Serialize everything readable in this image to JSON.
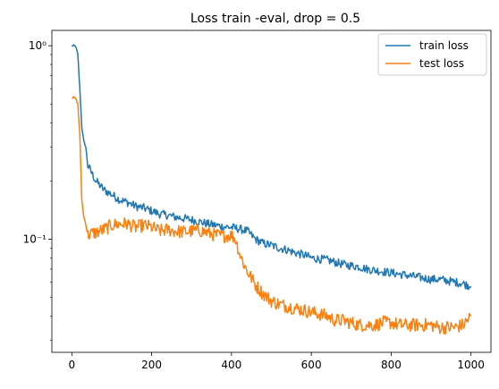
{
  "chart_data": {
    "type": "line",
    "title": "Loss train -eval, drop = 0.5",
    "xlabel": "",
    "ylabel": "",
    "yscale": "log",
    "xlim": [
      -50,
      1050
    ],
    "ylim": [
      0.026,
      1.2
    ],
    "grid": false,
    "legend_position": "top-right",
    "x_ticks": [
      0,
      200,
      400,
      600,
      800,
      1000
    ],
    "x_tick_labels": [
      "0",
      "200",
      "400",
      "600",
      "800",
      "1000"
    ],
    "y_ticks": [
      1,
      0.1
    ],
    "y_tick_labels": [
      "10⁰",
      "10⁻¹"
    ],
    "series": [
      {
        "name": "train loss",
        "color": "#1f77b4",
        "x": [
          0,
          5,
          10,
          15,
          20,
          25,
          30,
          35,
          40,
          50,
          60,
          70,
          80,
          100,
          120,
          140,
          160,
          180,
          200,
          220,
          240,
          260,
          280,
          300,
          320,
          340,
          360,
          380,
          400,
          420,
          440,
          460,
          480,
          500,
          520,
          540,
          560,
          580,
          600,
          620,
          640,
          660,
          680,
          700,
          720,
          740,
          760,
          780,
          800,
          820,
          840,
          860,
          880,
          900,
          920,
          940,
          960,
          980,
          1000
        ],
        "values": [
          1.0,
          1.0,
          0.99,
          0.9,
          0.6,
          0.38,
          0.32,
          0.3,
          0.24,
          0.22,
          0.2,
          0.19,
          0.18,
          0.17,
          0.16,
          0.155,
          0.148,
          0.145,
          0.14,
          0.135,
          0.133,
          0.13,
          0.128,
          0.126,
          0.123,
          0.12,
          0.118,
          0.116,
          0.115,
          0.113,
          0.11,
          0.1,
          0.095,
          0.093,
          0.09,
          0.088,
          0.085,
          0.083,
          0.08,
          0.079,
          0.078,
          0.076,
          0.074,
          0.073,
          0.072,
          0.07,
          0.069,
          0.068,
          0.067,
          0.066,
          0.065,
          0.064,
          0.063,
          0.062,
          0.062,
          0.061,
          0.06,
          0.059,
          0.057
        ]
      },
      {
        "name": "test loss",
        "color": "#ff7f0e",
        "x": [
          0,
          5,
          10,
          15,
          20,
          25,
          30,
          35,
          40,
          50,
          60,
          70,
          80,
          100,
          120,
          140,
          160,
          180,
          200,
          220,
          240,
          260,
          280,
          300,
          320,
          340,
          360,
          380,
          400,
          410,
          420,
          430,
          440,
          450,
          460,
          480,
          500,
          520,
          540,
          560,
          580,
          600,
          620,
          640,
          660,
          680,
          700,
          720,
          740,
          760,
          780,
          800,
          820,
          840,
          860,
          880,
          900,
          920,
          940,
          960,
          980,
          1000
        ],
        "values": [
          0.54,
          0.54,
          0.53,
          0.5,
          0.35,
          0.16,
          0.13,
          0.12,
          0.105,
          0.107,
          0.108,
          0.11,
          0.112,
          0.118,
          0.12,
          0.12,
          0.115,
          0.118,
          0.115,
          0.11,
          0.112,
          0.11,
          0.109,
          0.11,
          0.111,
          0.108,
          0.105,
          0.104,
          0.105,
          0.1,
          0.085,
          0.075,
          0.068,
          0.063,
          0.058,
          0.052,
          0.048,
          0.046,
          0.045,
          0.044,
          0.043,
          0.042,
          0.041,
          0.04,
          0.038,
          0.038,
          0.037,
          0.036,
          0.036,
          0.036,
          0.037,
          0.037,
          0.036,
          0.036,
          0.036,
          0.036,
          0.036,
          0.035,
          0.035,
          0.035,
          0.036,
          0.04
        ]
      }
    ]
  }
}
